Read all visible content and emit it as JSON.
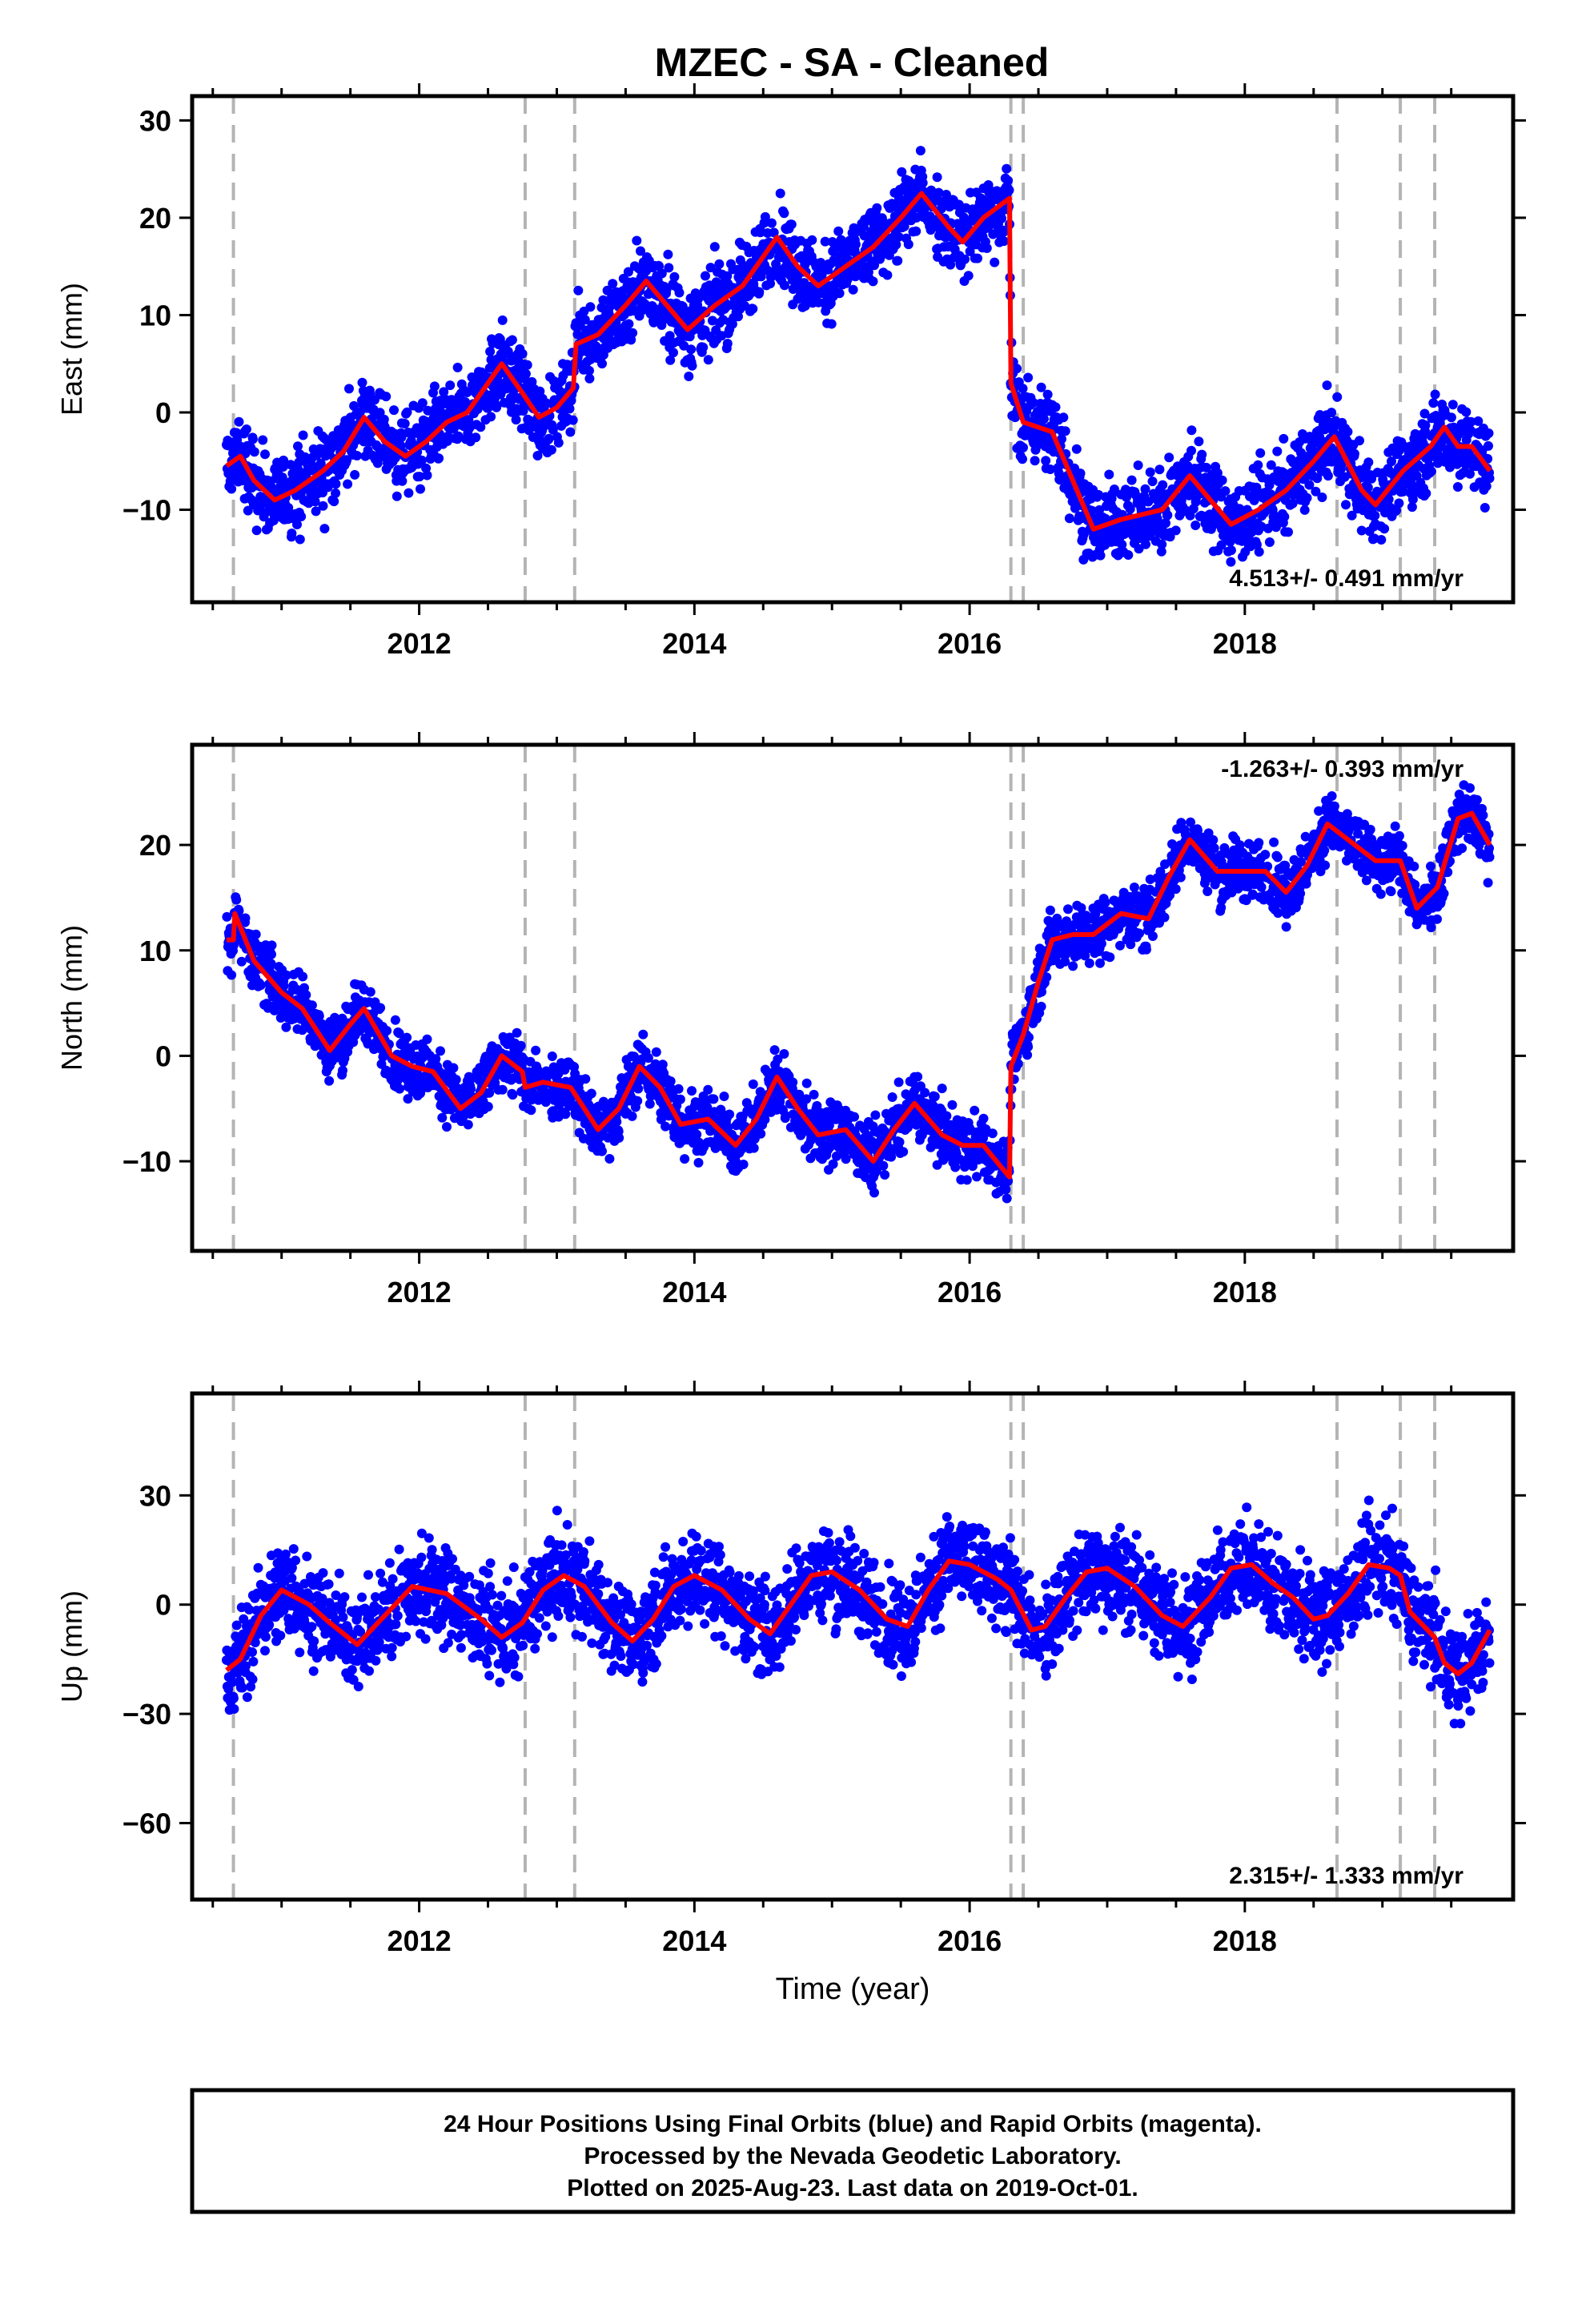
{
  "page": {
    "title": "MZEC  - SA - Cleaned",
    "footer": [
      "24 Hour Positions Using Final Orbits (blue) and Rapid Orbits (magenta).",
      "Processed by the Nevada Geodetic Laboratory.",
      "Plotted on 2025-Aug-23. Last data on 2019-Oct-01."
    ]
  },
  "colors": {
    "points": "#0000ff",
    "fit": "#ff0000",
    "breaks": "#b4b4b4",
    "frame": "#000000"
  },
  "chart_data": [
    {
      "type": "scatter",
      "name": "east",
      "ylabel": "East (mm)",
      "xlabel": "",
      "xlim": [
        2010.35,
        2019.95
      ],
      "ylim": [
        -19.5,
        32.5
      ],
      "xticks": [
        2012,
        2014,
        2016,
        2018
      ],
      "yticks": [
        -10,
        0,
        10,
        20,
        30
      ],
      "rate_label": "4.513+/- 0.491 mm/yr",
      "rate_position": "bottom-right",
      "offset_epochs": [
        2010.65,
        2012.77,
        2013.13,
        2016.3,
        2016.39,
        2018.67,
        2019.13,
        2019.38
      ],
      "fit_line": [
        [
          2010.6,
          -5.5
        ],
        [
          2010.7,
          -4.5
        ],
        [
          2010.8,
          -7
        ],
        [
          2010.95,
          -9
        ],
        [
          2011.1,
          -8
        ],
        [
          2011.3,
          -6
        ],
        [
          2011.45,
          -4
        ],
        [
          2011.6,
          -0.5
        ],
        [
          2011.75,
          -3
        ],
        [
          2011.9,
          -4.5
        ],
        [
          2012.05,
          -3
        ],
        [
          2012.2,
          -1
        ],
        [
          2012.35,
          0
        ],
        [
          2012.5,
          3
        ],
        [
          2012.6,
          5
        ],
        [
          2012.75,
          2
        ],
        [
          2012.87,
          -0.5
        ],
        [
          2013.0,
          0.5
        ],
        [
          2013.12,
          2.5
        ],
        [
          2013.14,
          7
        ],
        [
          2013.3,
          8
        ],
        [
          2013.5,
          11
        ],
        [
          2013.65,
          13.5
        ],
        [
          2013.8,
          11
        ],
        [
          2013.95,
          8.5
        ],
        [
          2014.15,
          11
        ],
        [
          2014.35,
          13
        ],
        [
          2014.6,
          18
        ],
        [
          2014.75,
          15
        ],
        [
          2014.9,
          13
        ],
        [
          2015.1,
          15
        ],
        [
          2015.3,
          17
        ],
        [
          2015.5,
          20
        ],
        [
          2015.65,
          22.5
        ],
        [
          2015.85,
          19
        ],
        [
          2015.95,
          17.5
        ],
        [
          2016.1,
          20
        ],
        [
          2016.29,
          22
        ],
        [
          2016.3,
          3
        ],
        [
          2016.39,
          -1
        ],
        [
          2016.6,
          -2
        ],
        [
          2016.75,
          -7
        ],
        [
          2016.9,
          -12
        ],
        [
          2017.1,
          -11
        ],
        [
          2017.4,
          -10
        ],
        [
          2017.6,
          -6.5
        ],
        [
          2017.75,
          -9
        ],
        [
          2017.9,
          -11.5
        ],
        [
          2018.1,
          -10
        ],
        [
          2018.3,
          -8
        ],
        [
          2018.5,
          -5
        ],
        [
          2018.65,
          -2.5
        ],
        [
          2018.85,
          -8
        ],
        [
          2018.95,
          -9.5
        ],
        [
          2019.15,
          -6
        ],
        [
          2019.35,
          -3.5
        ],
        [
          2019.45,
          -1.5
        ],
        [
          2019.55,
          -3.5
        ],
        [
          2019.65,
          -3.5
        ],
        [
          2019.78,
          -6
        ]
      ]
    },
    {
      "type": "scatter",
      "name": "north",
      "ylabel": "North (mm)",
      "xlabel": "",
      "xlim": [
        2010.35,
        2019.95
      ],
      "ylim": [
        -18.5,
        29.5
      ],
      "xticks": [
        2012,
        2014,
        2016,
        2018
      ],
      "yticks": [
        -10,
        0,
        10,
        20
      ],
      "rate_label": "-1.263+/- 0.393 mm/yr",
      "rate_position": "top-right",
      "offset_epochs": [
        2010.65,
        2012.77,
        2013.13,
        2016.3,
        2016.39,
        2018.67,
        2019.13,
        2019.38
      ],
      "fit_line": [
        [
          2010.6,
          11
        ],
        [
          2010.65,
          11
        ],
        [
          2010.66,
          13.5
        ],
        [
          2010.8,
          9
        ],
        [
          2011.0,
          6
        ],
        [
          2011.15,
          4.5
        ],
        [
          2011.35,
          0.5
        ],
        [
          2011.5,
          3
        ],
        [
          2011.6,
          4.5
        ],
        [
          2011.8,
          0
        ],
        [
          2011.95,
          -1
        ],
        [
          2012.1,
          -1.5
        ],
        [
          2012.3,
          -5
        ],
        [
          2012.45,
          -3.5
        ],
        [
          2012.6,
          0
        ],
        [
          2012.75,
          -1.5
        ],
        [
          2012.77,
          -3
        ],
        [
          2012.9,
          -2.5
        ],
        [
          2013.1,
          -3
        ],
        [
          2013.3,
          -7
        ],
        [
          2013.45,
          -5
        ],
        [
          2013.6,
          -1
        ],
        [
          2013.75,
          -3
        ],
        [
          2013.9,
          -6.5
        ],
        [
          2014.1,
          -6
        ],
        [
          2014.3,
          -8.5
        ],
        [
          2014.45,
          -6
        ],
        [
          2014.6,
          -2
        ],
        [
          2014.75,
          -5
        ],
        [
          2014.9,
          -7.5
        ],
        [
          2015.1,
          -7
        ],
        [
          2015.3,
          -10
        ],
        [
          2015.45,
          -7
        ],
        [
          2015.6,
          -4.5
        ],
        [
          2015.8,
          -7.5
        ],
        [
          2015.95,
          -8.5
        ],
        [
          2016.1,
          -8.5
        ],
        [
          2016.29,
          -11.5
        ],
        [
          2016.3,
          -1
        ],
        [
          2016.39,
          2
        ],
        [
          2016.5,
          7
        ],
        [
          2016.6,
          11
        ],
        [
          2016.75,
          11.5
        ],
        [
          2016.9,
          11.5
        ],
        [
          2017.1,
          13.5
        ],
        [
          2017.3,
          13
        ],
        [
          2017.45,
          17
        ],
        [
          2017.6,
          20.5
        ],
        [
          2017.8,
          17.5
        ],
        [
          2018.0,
          17.5
        ],
        [
          2018.15,
          17.5
        ],
        [
          2018.3,
          15.5
        ],
        [
          2018.45,
          18
        ],
        [
          2018.6,
          22
        ],
        [
          2018.8,
          20
        ],
        [
          2018.95,
          18.5
        ],
        [
          2019.13,
          18.5
        ],
        [
          2019.25,
          14
        ],
        [
          2019.4,
          16
        ],
        [
          2019.55,
          22.5
        ],
        [
          2019.65,
          23
        ],
        [
          2019.78,
          20
        ]
      ]
    },
    {
      "type": "scatter",
      "name": "up",
      "ylabel": "Up (mm)",
      "xlabel": "Time (year)",
      "xlim": [
        2010.35,
        2019.95
      ],
      "ylim": [
        -81,
        58
      ],
      "xticks": [
        2012,
        2014,
        2016,
        2018
      ],
      "yticks": [
        -60,
        -30,
        0,
        30
      ],
      "rate_label": "2.315+/- 1.333 mm/yr",
      "rate_position": "bottom-right",
      "offset_epochs": [
        2010.65,
        2012.77,
        2013.13,
        2016.3,
        2016.39,
        2018.67,
        2019.13,
        2019.38
      ],
      "fit_line": [
        [
          2010.6,
          -18
        ],
        [
          2010.7,
          -15
        ],
        [
          2010.85,
          -3
        ],
        [
          2011.0,
          4
        ],
        [
          2011.2,
          0
        ],
        [
          2011.35,
          -5
        ],
        [
          2011.55,
          -11
        ],
        [
          2011.75,
          -3
        ],
        [
          2011.95,
          5
        ],
        [
          2012.2,
          3
        ],
        [
          2012.45,
          -4
        ],
        [
          2012.6,
          -9
        ],
        [
          2012.75,
          -5
        ],
        [
          2012.9,
          4
        ],
        [
          2013.05,
          8
        ],
        [
          2013.2,
          5
        ],
        [
          2013.4,
          -5
        ],
        [
          2013.55,
          -10
        ],
        [
          2013.7,
          -4
        ],
        [
          2013.85,
          5
        ],
        [
          2014.0,
          8
        ],
        [
          2014.2,
          4
        ],
        [
          2014.4,
          -4
        ],
        [
          2014.55,
          -8
        ],
        [
          2014.7,
          0
        ],
        [
          2014.85,
          8
        ],
        [
          2015.0,
          9
        ],
        [
          2015.2,
          4
        ],
        [
          2015.4,
          -4
        ],
        [
          2015.55,
          -6
        ],
        [
          2015.7,
          4
        ],
        [
          2015.85,
          12
        ],
        [
          2016.0,
          11
        ],
        [
          2016.2,
          7
        ],
        [
          2016.3,
          4
        ],
        [
          2016.45,
          -7
        ],
        [
          2016.55,
          -6
        ],
        [
          2016.7,
          2
        ],
        [
          2016.85,
          9
        ],
        [
          2017.0,
          10
        ],
        [
          2017.2,
          5
        ],
        [
          2017.4,
          -3
        ],
        [
          2017.55,
          -6
        ],
        [
          2017.75,
          2
        ],
        [
          2017.9,
          10
        ],
        [
          2018.05,
          11
        ],
        [
          2018.2,
          6
        ],
        [
          2018.35,
          2
        ],
        [
          2018.5,
          -4
        ],
        [
          2018.6,
          -3
        ],
        [
          2018.75,
          3
        ],
        [
          2018.9,
          11
        ],
        [
          2019.05,
          10
        ],
        [
          2019.13,
          8
        ],
        [
          2019.2,
          -2
        ],
        [
          2019.38,
          -9
        ],
        [
          2019.45,
          -16
        ],
        [
          2019.55,
          -19
        ],
        [
          2019.65,
          -16
        ],
        [
          2019.78,
          -7
        ]
      ]
    }
  ]
}
